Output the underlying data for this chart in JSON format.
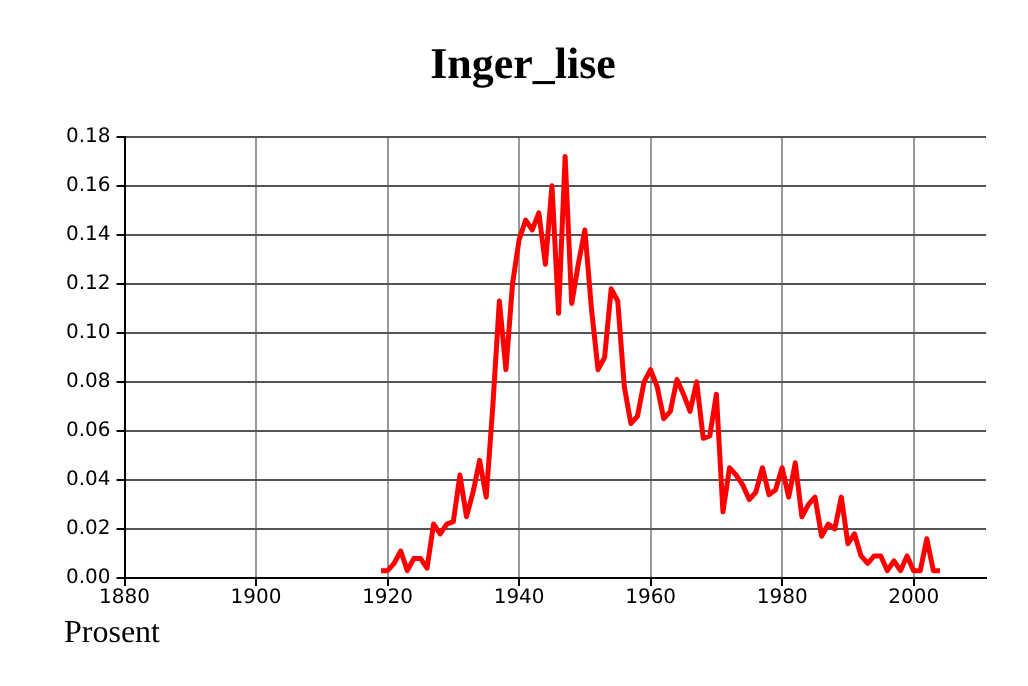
{
  "chart_data": {
    "type": "line",
    "title": "Inger_lise",
    "ylabel": "Prosent",
    "x": [
      1919,
      1920,
      1921,
      1922,
      1923,
      1924,
      1925,
      1926,
      1927,
      1928,
      1929,
      1930,
      1931,
      1932,
      1933,
      1934,
      1935,
      1936,
      1937,
      1938,
      1939,
      1940,
      1941,
      1942,
      1943,
      1944,
      1945,
      1946,
      1947,
      1948,
      1949,
      1950,
      1951,
      1952,
      1953,
      1954,
      1955,
      1956,
      1957,
      1958,
      1959,
      1960,
      1961,
      1962,
      1963,
      1964,
      1965,
      1966,
      1967,
      1968,
      1969,
      1970,
      1971,
      1972,
      1973,
      1974,
      1975,
      1976,
      1977,
      1978,
      1979,
      1980,
      1981,
      1982,
      1983,
      1984,
      1985,
      1986,
      1987,
      1988,
      1989,
      1990,
      1991,
      1992,
      1993,
      1994,
      1995,
      1996,
      1997,
      1998,
      1999,
      2000,
      2001,
      2002,
      2003,
      2004
    ],
    "series": [
      {
        "color": "#ff0000",
        "values": [
          0.003,
          0.003,
          0.006,
          0.011,
          0.003,
          0.008,
          0.008,
          0.004,
          0.022,
          0.018,
          0.022,
          0.023,
          0.042,
          0.025,
          0.035,
          0.048,
          0.033,
          0.07,
          0.113,
          0.085,
          0.12,
          0.138,
          0.146,
          0.142,
          0.149,
          0.128,
          0.16,
          0.108,
          0.172,
          0.112,
          0.128,
          0.142,
          0.11,
          0.085,
          0.09,
          0.118,
          0.113,
          0.078,
          0.063,
          0.066,
          0.08,
          0.085,
          0.078,
          0.065,
          0.068,
          0.081,
          0.075,
          0.068,
          0.08,
          0.057,
          0.058,
          0.075,
          0.027,
          0.045,
          0.042,
          0.038,
          0.032,
          0.035,
          0.045,
          0.034,
          0.036,
          0.045,
          0.033,
          0.047,
          0.025,
          0.03,
          0.033,
          0.017,
          0.022,
          0.02,
          0.033,
          0.014,
          0.018,
          0.009,
          0.006,
          0.009,
          0.009,
          0.003,
          0.007,
          0.003,
          0.009,
          0.003,
          0.003,
          0.016,
          0.003,
          0.003
        ]
      }
    ],
    "xlim": [
      1880,
      2011
    ],
    "xticks": [
      1880,
      1900,
      1920,
      1940,
      1960,
      1980,
      2000
    ],
    "ylim": [
      0,
      0.18
    ],
    "yticks": [
      {
        "value": 0,
        "label": "0.00"
      },
      {
        "value": 0.02,
        "label": "0.02"
      },
      {
        "value": 0.04,
        "label": "0.04"
      },
      {
        "value": 0.06,
        "label": "0.06"
      },
      {
        "value": 0.08,
        "label": "0.08"
      },
      {
        "value": 0.1,
        "label": "0.10"
      },
      {
        "value": 0.12,
        "label": "0.12"
      },
      {
        "value": 0.14,
        "label": "0.14"
      },
      {
        "value": 0.16,
        "label": "0.16"
      },
      {
        "value": 0.18,
        "label": "0.18"
      }
    ],
    "grid": true,
    "legend": false,
    "marker": "none",
    "line_style": "solid"
  }
}
